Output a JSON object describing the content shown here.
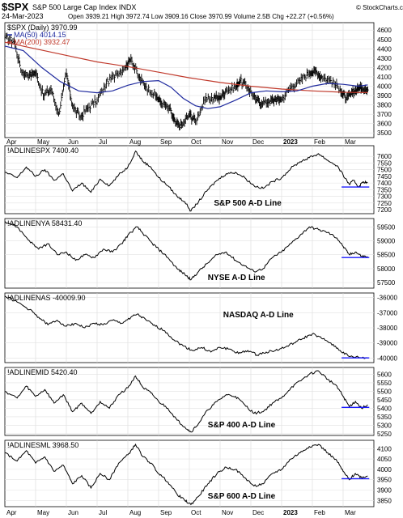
{
  "header": {
    "symbol": "$SPX",
    "name": "S&P 500 Large Cap Index INDX",
    "date": "24-Mar-2023",
    "ohlc": "Open 3939.21  High 3972.74  Low 3909.16  Close 3970.99  Volume 2.5B  Chg +22.27 (+0.56%)",
    "arrow": "▲",
    "brand": "© StockCharts.com"
  },
  "x_axis": {
    "months": [
      "Apr",
      "May",
      "Jun",
      "Jul",
      "Aug",
      "Sep",
      "Oct",
      "Nov",
      "Dec",
      "2023",
      "Feb",
      "Mar"
    ],
    "month_pos": [
      0,
      1,
      2,
      3,
      4,
      5,
      6,
      7,
      8,
      9,
      10,
      11
    ],
    "bold_index": 9,
    "n_months": 12
  },
  "chart_data": [
    {
      "type": "ohlc",
      "title": "$SPX (Daily) 3970.99",
      "legend": [
        {
          "label": "MA(50) 4014.15",
          "color": "#1f2a9e"
        },
        {
          "label": "MA(200) 3932.47",
          "color": "#c0392b"
        }
      ],
      "ylim": [
        3450,
        4680
      ],
      "yticks": [
        3500,
        3600,
        3700,
        3800,
        3900,
        4000,
        4100,
        4200,
        4300,
        4400,
        4500,
        4600
      ],
      "price_path": [
        [
          0,
          4520
        ],
        [
          0.3,
          4480
        ],
        [
          0.55,
          4150
        ],
        [
          0.8,
          4120
        ],
        [
          1,
          4150
        ],
        [
          1.25,
          3900
        ],
        [
          1.5,
          3970
        ],
        [
          1.75,
          3700
        ],
        [
          2,
          4140
        ],
        [
          2.2,
          3790
        ],
        [
          2.45,
          3670
        ],
        [
          2.7,
          3770
        ],
        [
          3,
          3850
        ],
        [
          3.3,
          4030
        ],
        [
          3.6,
          4130
        ],
        [
          3.9,
          4200
        ],
        [
          4.1,
          4300
        ],
        [
          4.35,
          4100
        ],
        [
          4.6,
          3990
        ],
        [
          4.9,
          3900
        ],
        [
          5.1,
          3820
        ],
        [
          5.35,
          3760
        ],
        [
          5.55,
          3600
        ],
        [
          5.75,
          3580
        ],
        [
          6,
          3700
        ],
        [
          6.2,
          3630
        ],
        [
          6.5,
          3850
        ],
        [
          6.8,
          3880
        ],
        [
          7,
          3880
        ],
        [
          7.2,
          3960
        ],
        [
          7.5,
          3990
        ],
        [
          7.65,
          4060
        ],
        [
          7.9,
          3990
        ],
        [
          8.15,
          3860
        ],
        [
          8.35,
          3820
        ],
        [
          8.6,
          3840
        ],
        [
          8.8,
          3860
        ],
        [
          9,
          3860
        ],
        [
          9.3,
          3990
        ],
        [
          9.6,
          4060
        ],
        [
          9.9,
          4150
        ],
        [
          10.1,
          4160
        ],
        [
          10.3,
          4100
        ],
        [
          10.6,
          4060
        ],
        [
          10.9,
          3970
        ],
        [
          11.1,
          3860
        ],
        [
          11.3,
          3930
        ],
        [
          11.45,
          3970
        ],
        [
          11.6,
          3990
        ],
        [
          11.8,
          3960
        ]
      ],
      "ma50": [
        [
          0,
          4430
        ],
        [
          0.6,
          4380
        ],
        [
          1.2,
          4200
        ],
        [
          1.8,
          4050
        ],
        [
          2.4,
          3950
        ],
        [
          3,
          3930
        ],
        [
          3.5,
          3950
        ],
        [
          4,
          4010
        ],
        [
          4.5,
          4050
        ],
        [
          5,
          4060
        ],
        [
          5.4,
          3990
        ],
        [
          5.8,
          3870
        ],
        [
          6.2,
          3790
        ],
        [
          6.6,
          3760
        ],
        [
          7,
          3780
        ],
        [
          7.5,
          3850
        ],
        [
          8,
          3930
        ],
        [
          8.5,
          3950
        ],
        [
          9,
          3940
        ],
        [
          9.5,
          3950
        ],
        [
          10,
          4000
        ],
        [
          10.5,
          4030
        ],
        [
          11,
          4020
        ],
        [
          11.5,
          4000
        ],
        [
          11.8,
          4014
        ]
      ],
      "ma200": [
        [
          0,
          4470
        ],
        [
          1,
          4400
        ],
        [
          2,
          4330
        ],
        [
          3,
          4260
        ],
        [
          4,
          4210
        ],
        [
          5,
          4150
        ],
        [
          6,
          4090
        ],
        [
          7,
          4040
        ],
        [
          8,
          4000
        ],
        [
          9,
          3970
        ],
        [
          10,
          3950
        ],
        [
          11,
          3935
        ],
        [
          11.8,
          3932
        ]
      ],
      "ohlc_bars": []
    },
    {
      "type": "line",
      "title": "!ADLINESPX 7400.40",
      "series": [
        {
          "name": "S&P 500 A-D Line",
          "values": []
        }
      ],
      "label": "S&P 500 A-D Line",
      "ylim": [
        7170,
        7680
      ],
      "yticks": [
        7200,
        7250,
        7300,
        7350,
        7400,
        7450,
        7500,
        7550,
        7600
      ],
      "path": [
        [
          0,
          7480
        ],
        [
          0.4,
          7440
        ],
        [
          0.7,
          7520
        ],
        [
          1,
          7450
        ],
        [
          1.3,
          7500
        ],
        [
          1.6,
          7420
        ],
        [
          1.9,
          7470
        ],
        [
          2.2,
          7340
        ],
        [
          2.5,
          7400
        ],
        [
          2.8,
          7330
        ],
        [
          3.1,
          7430
        ],
        [
          3.4,
          7380
        ],
        [
          3.7,
          7460
        ],
        [
          4,
          7520
        ],
        [
          4.25,
          7640
        ],
        [
          4.5,
          7560
        ],
        [
          4.75,
          7520
        ],
        [
          5,
          7440
        ],
        [
          5.3,
          7380
        ],
        [
          5.6,
          7300
        ],
        [
          5.85,
          7260
        ],
        [
          6.05,
          7190
        ],
        [
          6.3,
          7260
        ],
        [
          6.6,
          7350
        ],
        [
          6.9,
          7420
        ],
        [
          7.2,
          7470
        ],
        [
          7.5,
          7480
        ],
        [
          7.8,
          7440
        ],
        [
          8.1,
          7380
        ],
        [
          8.4,
          7360
        ],
        [
          8.7,
          7410
        ],
        [
          9,
          7440
        ],
        [
          9.3,
          7510
        ],
        [
          9.6,
          7560
        ],
        [
          9.9,
          7590
        ],
        [
          10.2,
          7620
        ],
        [
          10.5,
          7570
        ],
        [
          10.8,
          7530
        ],
        [
          11,
          7460
        ],
        [
          11.2,
          7390
        ],
        [
          11.35,
          7420
        ],
        [
          11.5,
          7370
        ],
        [
          11.65,
          7410
        ],
        [
          11.8,
          7400
        ]
      ],
      "support": 7370
    },
    {
      "type": "line",
      "title": "!ADLINENYA 58431.40",
      "label": "NYSE A-D Line",
      "ylim": [
        57300,
        59800
      ],
      "yticks": [
        57500,
        58000,
        58500,
        59000,
        59500
      ],
      "path": [
        [
          0,
          59700
        ],
        [
          0.4,
          59500
        ],
        [
          0.8,
          59000
        ],
        [
          1.1,
          58700
        ],
        [
          1.4,
          58900
        ],
        [
          1.7,
          58500
        ],
        [
          2,
          58600
        ],
        [
          2.3,
          58300
        ],
        [
          2.6,
          58500
        ],
        [
          2.9,
          58400
        ],
        [
          3.2,
          58700
        ],
        [
          3.5,
          58600
        ],
        [
          3.8,
          58900
        ],
        [
          4,
          59200
        ],
        [
          4.3,
          59500
        ],
        [
          4.55,
          59200
        ],
        [
          4.8,
          58900
        ],
        [
          5,
          58700
        ],
        [
          5.3,
          58400
        ],
        [
          5.6,
          58000
        ],
        [
          5.85,
          57800
        ],
        [
          6.05,
          57600
        ],
        [
          6.3,
          57900
        ],
        [
          6.6,
          58200
        ],
        [
          6.9,
          58500
        ],
        [
          7.2,
          58600
        ],
        [
          7.5,
          58300
        ],
        [
          7.8,
          58100
        ],
        [
          8.1,
          57900
        ],
        [
          8.4,
          58000
        ],
        [
          8.7,
          58400
        ],
        [
          9,
          58600
        ],
        [
          9.3,
          58900
        ],
        [
          9.6,
          59200
        ],
        [
          9.9,
          59500
        ],
        [
          10.2,
          59400
        ],
        [
          10.5,
          59300
        ],
        [
          10.8,
          59100
        ],
        [
          11,
          58800
        ],
        [
          11.2,
          58500
        ],
        [
          11.4,
          58600
        ],
        [
          11.6,
          58450
        ],
        [
          11.8,
          58430
        ]
      ],
      "support": 58400
    },
    {
      "type": "line",
      "title": "!ADLINENAS -40009.90",
      "label": "NASDAQ A-D Line",
      "ylim": [
        -40300,
        -35700
      ],
      "yticks": [
        -36000,
        -37000,
        -38000,
        -39000,
        -40000
      ],
      "path": [
        [
          0,
          -35900
        ],
        [
          0.4,
          -36300
        ],
        [
          0.8,
          -36800
        ],
        [
          1.1,
          -37300
        ],
        [
          1.4,
          -37800
        ],
        [
          1.7,
          -37500
        ],
        [
          2,
          -37900
        ],
        [
          2.3,
          -37700
        ],
        [
          2.6,
          -38000
        ],
        [
          2.9,
          -37700
        ],
        [
          3.2,
          -37800
        ],
        [
          3.5,
          -37500
        ],
        [
          3.8,
          -37700
        ],
        [
          4.1,
          -37300
        ],
        [
          4.3,
          -37100
        ],
        [
          4.6,
          -37500
        ],
        [
          4.9,
          -37900
        ],
        [
          5.2,
          -38200
        ],
        [
          5.5,
          -38800
        ],
        [
          5.8,
          -39200
        ],
        [
          6.1,
          -39500
        ],
        [
          6.4,
          -39300
        ],
        [
          6.7,
          -39600
        ],
        [
          7,
          -39300
        ],
        [
          7.3,
          -39400
        ],
        [
          7.6,
          -39700
        ],
        [
          7.9,
          -39500
        ],
        [
          8.2,
          -39800
        ],
        [
          8.5,
          -39600
        ],
        [
          8.8,
          -39500
        ],
        [
          9.1,
          -39300
        ],
        [
          9.4,
          -39000
        ],
        [
          9.7,
          -38700
        ],
        [
          10,
          -38400
        ],
        [
          10.3,
          -38700
        ],
        [
          10.6,
          -39000
        ],
        [
          10.9,
          -39500
        ],
        [
          11.2,
          -39900
        ],
        [
          11.5,
          -39950
        ],
        [
          11.8,
          -40010
        ]
      ],
      "support": -39990
    },
    {
      "type": "line",
      "title": "!ADLINEMID 5420.40",
      "label": "S&P 400 A-D Line",
      "ylim": [
        5240,
        5640
      ],
      "yticks": [
        5250,
        5300,
        5350,
        5400,
        5450,
        5500,
        5550,
        5600
      ],
      "path": [
        [
          0,
          5500
        ],
        [
          0.4,
          5460
        ],
        [
          0.7,
          5530
        ],
        [
          1,
          5470
        ],
        [
          1.3,
          5510
        ],
        [
          1.6,
          5430
        ],
        [
          1.9,
          5480
        ],
        [
          2.2,
          5380
        ],
        [
          2.5,
          5430
        ],
        [
          2.8,
          5370
        ],
        [
          3.1,
          5440
        ],
        [
          3.4,
          5400
        ],
        [
          3.7,
          5480
        ],
        [
          4,
          5520
        ],
        [
          4.25,
          5590
        ],
        [
          4.5,
          5520
        ],
        [
          4.75,
          5490
        ],
        [
          5,
          5440
        ],
        [
          5.3,
          5400
        ],
        [
          5.6,
          5330
        ],
        [
          5.85,
          5290
        ],
        [
          6.05,
          5260
        ],
        [
          6.3,
          5310
        ],
        [
          6.6,
          5390
        ],
        [
          6.9,
          5440
        ],
        [
          7.2,
          5480
        ],
        [
          7.5,
          5470
        ],
        [
          7.8,
          5420
        ],
        [
          8.1,
          5370
        ],
        [
          8.4,
          5380
        ],
        [
          8.7,
          5430
        ],
        [
          9,
          5460
        ],
        [
          9.3,
          5520
        ],
        [
          9.6,
          5560
        ],
        [
          9.9,
          5600
        ],
        [
          10.2,
          5620
        ],
        [
          10.5,
          5570
        ],
        [
          10.8,
          5530
        ],
        [
          11,
          5470
        ],
        [
          11.2,
          5410
        ],
        [
          11.4,
          5440
        ],
        [
          11.6,
          5400
        ],
        [
          11.8,
          5420
        ]
      ],
      "support": 5405
    },
    {
      "type": "line",
      "title": "!ADLINESML 3968.50",
      "label": "S&P 600 A-D Line",
      "ylim": [
        3820,
        4140
      ],
      "yticks": [
        3850,
        3900,
        3950,
        4000,
        4050,
        4100
      ],
      "path": [
        [
          0,
          4080
        ],
        [
          0.4,
          4040
        ],
        [
          0.7,
          4090
        ],
        [
          1,
          4030
        ],
        [
          1.3,
          4060
        ],
        [
          1.6,
          3990
        ],
        [
          1.9,
          4020
        ],
        [
          2.2,
          3930
        ],
        [
          2.5,
          3970
        ],
        [
          2.8,
          3910
        ],
        [
          3.1,
          3980
        ],
        [
          3.4,
          3950
        ],
        [
          3.7,
          4030
        ],
        [
          4,
          4070
        ],
        [
          4.25,
          4120
        ],
        [
          4.5,
          4060
        ],
        [
          4.75,
          4030
        ],
        [
          5,
          3980
        ],
        [
          5.3,
          3940
        ],
        [
          5.6,
          3880
        ],
        [
          5.85,
          3850
        ],
        [
          6.05,
          3830
        ],
        [
          6.3,
          3870
        ],
        [
          6.6,
          3930
        ],
        [
          6.9,
          3980
        ],
        [
          7.2,
          4010
        ],
        [
          7.5,
          4000
        ],
        [
          7.8,
          3960
        ],
        [
          8.1,
          3920
        ],
        [
          8.4,
          3930
        ],
        [
          8.7,
          3980
        ],
        [
          9,
          4000
        ],
        [
          9.3,
          4050
        ],
        [
          9.6,
          4080
        ],
        [
          9.9,
          4110
        ],
        [
          10.2,
          4120
        ],
        [
          10.5,
          4080
        ],
        [
          10.8,
          4040
        ],
        [
          11,
          3990
        ],
        [
          11.2,
          3950
        ],
        [
          11.4,
          3980
        ],
        [
          11.6,
          3960
        ],
        [
          11.8,
          3968
        ]
      ],
      "support": 3955
    }
  ]
}
